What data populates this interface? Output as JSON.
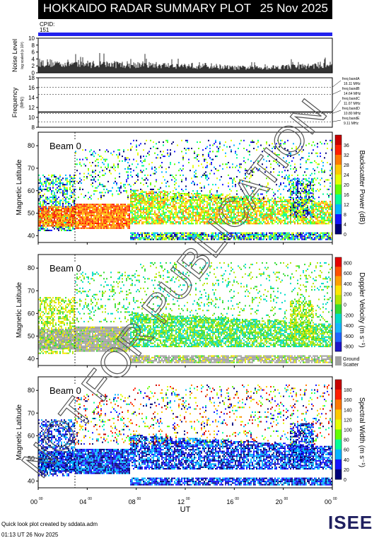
{
  "header": {
    "title": "HOKKAIDO RADAR SUMMARY PLOT",
    "date": "25 Nov 2025",
    "cpid_label": "CPID:",
    "cpid_value": "151"
  },
  "watermark": "NOT FOR PUBLICATION",
  "footer": {
    "credit": "Quick look plot created by sddata.adm",
    "timestamp": "01:13 UT 26 Nov 2025",
    "logo": "ISEE"
  },
  "colors": {
    "cpid_bar": "#2222ee",
    "ground_scatter": "#a0a0a0"
  },
  "chart_data": [
    {
      "type": "line",
      "id": "noise",
      "ylabel": "Noise Level",
      "ylabel_sub": "log scaled (x 10³)",
      "ylim": [
        0,
        10
      ],
      "yticks": [
        0,
        2,
        4,
        6,
        8,
        10
      ],
      "x": [
        0,
        2,
        4,
        6,
        8,
        10,
        12,
        14,
        16,
        18,
        20,
        22,
        24
      ],
      "values": [
        3.2,
        3.0,
        2.8,
        2.7,
        2.6,
        2.4,
        2.3,
        2.2,
        1.6,
        1.7,
        1.9,
        2.1,
        2.8
      ]
    },
    {
      "type": "line",
      "id": "frequency",
      "ylabel": "Frequency",
      "ylabel_unit": "(MHz)",
      "ylim": [
        8,
        18
      ],
      "yticks": [
        8,
        10,
        12,
        14,
        16,
        18
      ],
      "bands": [
        {
          "label": "freq bandA",
          "value": "16.11 MHz",
          "freq": 16.11
        },
        {
          "label": "freq bandB",
          "value": "14.64 MHz",
          "freq": 14.64
        },
        {
          "label": "freq bandC",
          "value": "11.07 MHz",
          "freq": 11.07
        },
        {
          "label": "freq bandD",
          "value": "10.80 MHz",
          "freq": 10.8
        },
        {
          "label": "freq bandE",
          "value": "9.11 MHz",
          "freq": 9.11
        }
      ],
      "operating_freq": 11.07
    },
    {
      "type": "heatmap",
      "id": "power",
      "beam_label": "Beam",
      "beam": "0",
      "ylabel": "Magnetic Latitude",
      "ylim": [
        37,
        86
      ],
      "yticks": [
        40,
        50,
        60,
        70,
        80
      ],
      "colorbar_label": "Backscatter Power (dB)",
      "colorbar_ticks": [
        "0",
        "4",
        "8",
        "12",
        "16",
        "20",
        "24",
        "28",
        "32",
        "36"
      ],
      "colormap": [
        "#000078",
        "#1414ff",
        "#00b4ff",
        "#00ff96",
        "#64ff00",
        "#e6ff00",
        "#ffc800",
        "#ff7800",
        "#ff1e00",
        "#c80000"
      ]
    },
    {
      "type": "heatmap",
      "id": "velocity",
      "beam_label": "Beam",
      "beam": "0",
      "ylabel": "Magnetic Latitude",
      "ylim": [
        37,
        86
      ],
      "yticks": [
        40,
        50,
        60,
        70,
        80
      ],
      "colorbar_label": "Doppler Velocity (m s⁻¹)",
      "colorbar_ticks": [
        "800",
        "600",
        "400",
        "200",
        "0",
        "-200",
        "-400",
        "-600",
        "-800"
      ],
      "colormap": [
        "#1e14c8",
        "#1e64ff",
        "#14b4ff",
        "#00dcc8",
        "#32dc32",
        "#b4e600",
        "#ffe600",
        "#ffa000",
        "#ff5000",
        "#e60000"
      ],
      "ground_scatter_label": "Ground\nScatter"
    },
    {
      "type": "heatmap",
      "id": "width",
      "beam_label": "Beam",
      "beam": "0",
      "ylabel": "Magnetic Latitude",
      "ylim": [
        37,
        86
      ],
      "yticks": [
        40,
        50,
        60,
        70,
        80
      ],
      "colorbar_label": "Spectral Width (m s⁻¹)",
      "colorbar_ticks": [
        "0",
        "20",
        "40",
        "60",
        "80",
        "100",
        "120",
        "140",
        "160",
        "180"
      ],
      "colormap": [
        "#000078",
        "#1414ff",
        "#00b4ff",
        "#00ff96",
        "#64ff00",
        "#e6ff00",
        "#ffc800",
        "#ff7800",
        "#ff1e00",
        "#c80000"
      ]
    }
  ],
  "xaxis": {
    "label": "UT",
    "ticks": [
      {
        "h": "00",
        "m": "00"
      },
      {
        "h": "04",
        "m": "00"
      },
      {
        "h": "08",
        "m": "00"
      },
      {
        "h": "12",
        "m": "00"
      },
      {
        "h": "16",
        "m": "00"
      },
      {
        "h": "20",
        "m": "00"
      },
      {
        "h": "00",
        "m": "00"
      }
    ],
    "range_hours": [
      0,
      24
    ],
    "scan_change_hour": 3
  }
}
